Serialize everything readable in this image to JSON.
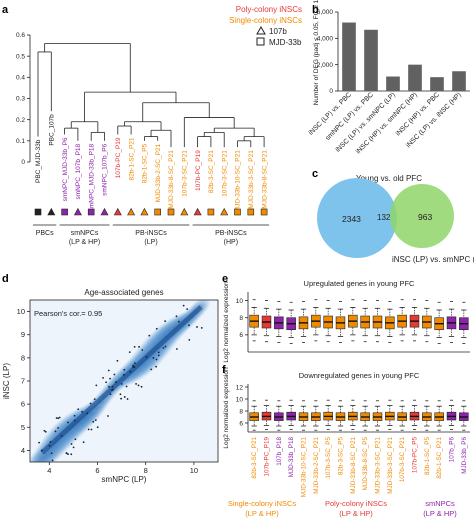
{
  "panels": {
    "a": "a",
    "b": "b",
    "c": "c",
    "d": "d",
    "e": "e",
    "f": "f"
  },
  "legend_a": {
    "poly": "Poly-colony iNSCs",
    "single": "Single-colony iNSCs",
    "tri": "107b",
    "sq": "MJD-33b"
  },
  "colors": {
    "black": "#222222",
    "purple": "#8e24aa",
    "red": "#e53935",
    "orange": "#f08a00",
    "teal": "#3a8f8a"
  },
  "dendro": {
    "yticks": [
      "0.6",
      "0.5",
      "0.4",
      "0.3",
      "0.2",
      "0.1",
      "0"
    ],
    "leaves": [
      {
        "label": "PBC_MJD-33b",
        "color": "#222222",
        "shape": "square"
      },
      {
        "label": "PBC_107b",
        "color": "#222222",
        "shape": "triangle"
      },
      {
        "label": "smNPC_MJD-33b_P6",
        "color": "#8e24aa",
        "shape": "square"
      },
      {
        "label": "smNPC_107b_P18",
        "color": "#8e24aa",
        "shape": "triangle"
      },
      {
        "label": "smNPC_MJD-33b_P18",
        "color": "#8e24aa",
        "shape": "square"
      },
      {
        "label": "smNPC_107b_P6",
        "color": "#8e24aa",
        "shape": "triangle"
      },
      {
        "label": "107b-PC_P19",
        "color": "#e53935",
        "shape": "triangle"
      },
      {
        "label": "82b-1-SC_P21",
        "color": "#f08a00",
        "shape": "triangle"
      },
      {
        "label": "82b-1-SC_P5",
        "color": "#f08a00",
        "shape": "triangle"
      },
      {
        "label": "MJD-33b-2-SC_P21",
        "color": "#f08a00",
        "shape": "square"
      },
      {
        "label": "MJD-33b-8-SC_P21",
        "color": "#f08a00",
        "shape": "square"
      },
      {
        "label": "107b-3-SC_P21",
        "color": "#f08a00",
        "shape": "triangle"
      },
      {
        "label": "107b-PC_P19",
        "color": "#e53935",
        "shape": "triangle"
      },
      {
        "label": "82b-3-SC_P21",
        "color": "#f08a00",
        "shape": "square"
      },
      {
        "label": "107b-3-SC_P21",
        "color": "#f08a00",
        "shape": "triangle"
      },
      {
        "label": "MJD-33b-10-SC_P21",
        "color": "#f08a00",
        "shape": "square"
      },
      {
        "label": "MJD-33b-3-SC_P21",
        "color": "#f08a00",
        "shape": "square"
      },
      {
        "label": "MJD-33b-8-SC_P21",
        "color": "#f08a00",
        "shape": "square"
      }
    ],
    "groups": [
      {
        "l1": "PBCs",
        "l2": ""
      },
      {
        "l1": "smNPCs",
        "l2": "(LP & HP)"
      },
      {
        "l1": "PB-iNSCs",
        "l2": "(LP)"
      },
      {
        "l1": "PB-iNSCs",
        "l2": "(HP)"
      }
    ]
  },
  "chart_data": [
    {
      "type": "bar",
      "ylabel": "Number of DEG (padj ≤ 0.05, FC ≥ 1)",
      "categories": [
        "iNSC (LP) vs. PBC",
        "smNPC (LP) vs. PBC",
        "iNSC (LP) vs. smNPC (LP)",
        "iNSC (HP) vs. smNPC (HP)",
        "iNSC (HP) vs. PBC",
        "iNSC (LP) vs. iNSC (HP)"
      ],
      "values": [
        5200,
        4650,
        1100,
        2000,
        1050,
        1500
      ],
      "ylim": [
        0,
        6000
      ],
      "yticks": [
        "0",
        "2,000",
        "4,000",
        "6,000"
      ]
    },
    {
      "type": "venn",
      "title": "Young vs. old PFC",
      "set_b": "iNSC (LP) vs. smNPC (LP)",
      "only_a": "2343",
      "both": "132",
      "only_b": "963"
    },
    {
      "type": "scatter",
      "title": "Age-associated genes",
      "annotation": "Pearson's cor.= 0.95",
      "xlabel": "smNPC (LP)",
      "ylabel": "iNSC (LP)",
      "xlim": [
        3.2,
        11
      ],
      "ylim": [
        3.5,
        10.5
      ],
      "xticks": [
        "4",
        "6",
        "8",
        "10"
      ],
      "yticks": [
        "4",
        "5",
        "6",
        "7",
        "8",
        "9",
        "10"
      ]
    },
    {
      "type": "box",
      "title": "Upregulated genes in young PFC",
      "ylabel": "Log2 normalized expression",
      "yticks": [
        "6",
        "8",
        "10"
      ],
      "medians": [
        7.6,
        7.5,
        7.4,
        7.3,
        7.4,
        7.6,
        7.5,
        7.4,
        7.6,
        7.5,
        7.5,
        7.4,
        7.6,
        7.6,
        7.5,
        7.3,
        7.4,
        7.3
      ]
    },
    {
      "type": "box",
      "title": "Downregulated genes in young PFC",
      "ylabel": "Log2 normalized expression",
      "yticks": [
        "6",
        "8",
        "10",
        "12"
      ],
      "medians": [
        7.0,
        7.1,
        7.0,
        7.1,
        7.0,
        7.0,
        7.1,
        7.0,
        7.1,
        7.0,
        7.0,
        7.1,
        7.0,
        7.1,
        7.0,
        7.0,
        7.1,
        7.0
      ]
    }
  ],
  "boxlabels": [
    {
      "label": "82b-3-SC_P21",
      "color": "#f08a00"
    },
    {
      "label": "107b-PC_P19",
      "color": "#e53935"
    },
    {
      "label": "107b_P18",
      "color": "#8e24aa"
    },
    {
      "label": "MJD-33b_P18",
      "color": "#8e24aa"
    },
    {
      "label": "MJD-33b-10-SC_P21",
      "color": "#f08a00"
    },
    {
      "label": "MJD-33b-2-SC_P21",
      "color": "#f08a00"
    },
    {
      "label": "107b-3-SC_P5",
      "color": "#f08a00"
    },
    {
      "label": "82b-3-SC_P5",
      "color": "#f08a00"
    },
    {
      "label": "MJD-33b-8-SC_P21",
      "color": "#f08a00"
    },
    {
      "label": "MJD-33b-8-SC_P5",
      "color": "#f08a00"
    },
    {
      "label": "MJD-33b-3-SC_P21",
      "color": "#f08a00"
    },
    {
      "label": "MJD-33b-3-SC_P21",
      "color": "#f08a00"
    },
    {
      "label": "107b-3-SC_P21",
      "color": "#f08a00"
    },
    {
      "label": "107b-PC_P5",
      "color": "#e53935"
    },
    {
      "label": "82b-1-SC_P5",
      "color": "#f08a00"
    },
    {
      "label": "82b-1-SC_P21",
      "color": "#f08a00"
    },
    {
      "label": "107b_P6",
      "color": "#8e24aa"
    },
    {
      "label": "MJD-33b_P6",
      "color": "#8e24aa"
    }
  ],
  "legend_ef": [
    {
      "l1": "Single-colony iNSCs",
      "l2": "(LP & HP)",
      "color": "#f08a00"
    },
    {
      "l1": "Poly-colony iNSCs",
      "l2": "(LP & HP)",
      "color": "#e53935"
    },
    {
      "l1": "smNPCs",
      "l2": "(LP & HP)",
      "color": "#8e24aa"
    }
  ]
}
